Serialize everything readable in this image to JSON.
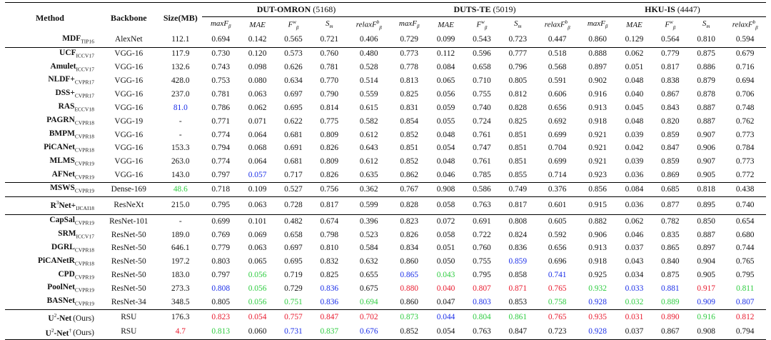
{
  "header": {
    "method": "Method",
    "backbone": "Backbone",
    "size": "Size(MB)",
    "datasets": [
      {
        "name": "DUT-OMRON",
        "count": "(5168)"
      },
      {
        "name": "DUTS-TE",
        "count": "(5019)"
      },
      {
        "name": "HKU-IS",
        "count": "(4447)"
      }
    ],
    "metrics": [
      "maxF",
      "MAE",
      "F",
      "S",
      "relaxF"
    ],
    "metric_subs": [
      "β",
      "",
      "β",
      "m",
      "β"
    ],
    "metric_sups": [
      "",
      "",
      "w",
      "",
      "b"
    ]
  },
  "colors": {
    "red": "#e8192c",
    "green": "#2ecc40",
    "blue": "#1a2ee8"
  },
  "rows": [
    {
      "m": "MDF",
      "v": "TIP16",
      "bb": "AlexNet",
      "size": "112.1",
      "vals": [
        "0.694",
        "0.142",
        "0.565",
        "0.721",
        "0.406",
        "0.729",
        "0.099",
        "0.543",
        "0.723",
        "0.447",
        "0.860",
        "0.129",
        "0.564",
        "0.810",
        "0.594"
      ]
    },
    {
      "sep": true,
      "m": "UCF",
      "v": "ICCV17",
      "bb": "VGG-16",
      "size": "117.9",
      "vals": [
        "0.730",
        "0.120",
        "0.573",
        "0.760",
        "0.480",
        "0.773",
        "0.112",
        "0.596",
        "0.777",
        "0.518",
        "0.888",
        "0.062",
        "0.779",
        "0.875",
        "0.679"
      ]
    },
    {
      "m": "Amulet",
      "v": "ICCV17",
      "bb": "VGG-16",
      "size": "132.6",
      "vals": [
        "0.743",
        "0.098",
        "0.626",
        "0.781",
        "0.528",
        "0.778",
        "0.084",
        "0.658",
        "0.796",
        "0.568",
        "0.897",
        "0.051",
        "0.817",
        "0.886",
        "0.716"
      ]
    },
    {
      "m": "NLDF+",
      "v": "CVPR17",
      "bb": "VGG-16",
      "size": "428.0",
      "vals": [
        "0.753",
        "0.080",
        "0.634",
        "0.770",
        "0.514",
        "0.813",
        "0.065",
        "0.710",
        "0.805",
        "0.591",
        "0.902",
        "0.048",
        "0.838",
        "0.879",
        "0.694"
      ]
    },
    {
      "m": "DSS+",
      "v": "CVPR17",
      "bb": "VGG-16",
      "size": "237.0",
      "vals": [
        "0.781",
        "0.063",
        "0.697",
        "0.790",
        "0.559",
        "0.825",
        "0.056",
        "0.755",
        "0.812",
        "0.606",
        "0.916",
        "0.040",
        "0.867",
        "0.878",
        "0.706"
      ]
    },
    {
      "m": "RAS",
      "v": "ECCV18",
      "bb": "VGG-16",
      "size": "81.0",
      "sizeC": "b",
      "vals": [
        "0.786",
        "0.062",
        "0.695",
        "0.814",
        "0.615",
        "0.831",
        "0.059",
        "0.740",
        "0.828",
        "0.656",
        "0.913",
        "0.045",
        "0.843",
        "0.887",
        "0.748"
      ]
    },
    {
      "m": "PAGRN",
      "v": "CVPR18",
      "bb": "VGG-19",
      "size": "-",
      "vals": [
        "0.771",
        "0.071",
        "0.622",
        "0.775",
        "0.582",
        "0.854",
        "0.055",
        "0.724",
        "0.825",
        "0.692",
        "0.918",
        "0.048",
        "0.820",
        "0.887",
        "0.762"
      ]
    },
    {
      "m": "BMPM",
      "v": "CVPR18",
      "bb": "VGG-16",
      "size": "-",
      "vals": [
        "0.774",
        "0.064",
        "0.681",
        "0.809",
        "0.612",
        "0.852",
        "0.048",
        "0.761",
        "0.851",
        "0.699",
        "0.921",
        "0.039",
        "0.859",
        "0.907",
        "0.773"
      ]
    },
    {
      "m": "PiCANet",
      "v": "CVPR18",
      "bb": "VGG-16",
      "size": "153.3",
      "vals": [
        "0.794",
        "0.068",
        "0.691",
        "0.826",
        "0.643",
        "0.851",
        "0.054",
        "0.747",
        "0.851",
        "0.704",
        "0.921",
        "0.042",
        "0.847",
        "0.906",
        "0.784"
      ]
    },
    {
      "m": "MLMS",
      "v": "CVPR19",
      "bb": "VGG-16",
      "size": "263.0",
      "vals": [
        "0.774",
        "0.064",
        "0.681",
        "0.809",
        "0.612",
        "0.852",
        "0.048",
        "0.761",
        "0.851",
        "0.699",
        "0.921",
        "0.039",
        "0.859",
        "0.907",
        "0.773"
      ]
    },
    {
      "m": "AFNet",
      "v": "CVPR19",
      "bb": "VGG-16",
      "size": "143.0",
      "vals": [
        "0.797",
        "0.057",
        "0.717",
        "0.826",
        "0.635",
        "0.862",
        "0.046",
        "0.785",
        "0.855",
        "0.714",
        "0.923",
        "0.036",
        "0.869",
        "0.905",
        "0.772"
      ],
      "cols": {
        "1": "b"
      }
    },
    {
      "sep": true,
      "m": "MSWS",
      "v": "CVPR19",
      "bb": "Dense-169",
      "size": "48.6",
      "sizeC": "g",
      "vals": [
        "0.718",
        "0.109",
        "0.527",
        "0.756",
        "0.362",
        "0.767",
        "0.908",
        "0.586",
        "0.749",
        "0.376",
        "0.856",
        "0.084",
        "0.685",
        "0.818",
        "0.438"
      ]
    },
    {
      "sep": true,
      "m": "R",
      "sup": "3",
      "m2": "Net+",
      "v": "IJCAI18",
      "bb": "ResNeXt",
      "size": "215.0",
      "vals": [
        "0.795",
        "0.063",
        "0.728",
        "0.817",
        "0.599",
        "0.828",
        "0.058",
        "0.763",
        "0.817",
        "0.601",
        "0.915",
        "0.036",
        "0.877",
        "0.895",
        "0.740"
      ]
    },
    {
      "sep": true,
      "m": "CapSal",
      "v": "CVPR19",
      "bb": "ResNet-101",
      "size": "-",
      "vals": [
        "0.699",
        "0.101",
        "0.482",
        "0.674",
        "0.396",
        "0.823",
        "0.072",
        "0.691",
        "0.808",
        "0.605",
        "0.882",
        "0.062",
        "0.782",
        "0.850",
        "0.654"
      ]
    },
    {
      "m": "SRM",
      "v": "ICCV17",
      "bb": "ResNet-50",
      "size": "189.0",
      "vals": [
        "0.769",
        "0.069",
        "0.658",
        "0.798",
        "0.523",
        "0.826",
        "0.058",
        "0.722",
        "0.824",
        "0.592",
        "0.906",
        "0.046",
        "0.835",
        "0.887",
        "0.680"
      ]
    },
    {
      "m": "DGRL",
      "v": "CVPR18",
      "bb": "ResNet-50",
      "size": "646.1",
      "vals": [
        "0.779",
        "0.063",
        "0.697",
        "0.810",
        "0.584",
        "0.834",
        "0.051",
        "0.760",
        "0.836",
        "0.656",
        "0.913",
        "0.037",
        "0.865",
        "0.897",
        "0.744"
      ]
    },
    {
      "m": "PiCANetR",
      "v": "CVPR18",
      "bb": "ResNet-50",
      "size": "197.2",
      "vals": [
        "0.803",
        "0.065",
        "0.695",
        "0.832",
        "0.632",
        "0.860",
        "0.050",
        "0.755",
        "0.859",
        "0.696",
        "0.918",
        "0.043",
        "0.840",
        "0.904",
        "0.765"
      ],
      "cols": {
        "8": "b"
      }
    },
    {
      "m": "CPD",
      "v": "CVPR19",
      "bb": "ResNet-50",
      "size": "183.0",
      "vals": [
        "0.797",
        "0.056",
        "0.719",
        "0.825",
        "0.655",
        "0.865",
        "0.043",
        "0.795",
        "0.858",
        "0.741",
        "0.925",
        "0.034",
        "0.875",
        "0.905",
        "0.795"
      ],
      "cols": {
        "1": "g",
        "5": "b",
        "6": "g",
        "9": "b"
      }
    },
    {
      "m": "PoolNet",
      "v": "CVPR19",
      "bb": "ResNet-50",
      "size": "273.3",
      "vals": [
        "0.808",
        "0.056",
        "0.729",
        "0.836",
        "0.675",
        "0.880",
        "0.040",
        "0.807",
        "0.871",
        "0.765",
        "0.932",
        "0.033",
        "0.881",
        "0.917",
        "0.811"
      ],
      "cols": {
        "0": "b",
        "1": "g",
        "3": "b",
        "5": "r",
        "6": "r",
        "7": "r",
        "8": "r",
        "9": "r",
        "10": "g",
        "11": "b",
        "12": "b",
        "13": "r",
        "14": "g"
      }
    },
    {
      "m": "BASNet",
      "v": "CVPR19",
      "bb": "ResNet-34",
      "size": "348.5",
      "vals": [
        "0.805",
        "0.056",
        "0.751",
        "0.836",
        "0.694",
        "0.860",
        "0.047",
        "0.803",
        "0.853",
        "0.758",
        "0.928",
        "0.032",
        "0.889",
        "0.909",
        "0.807"
      ],
      "cols": {
        "1": "g",
        "2": "g",
        "3": "b",
        "4": "g",
        "7": "b",
        "9": "g",
        "10": "b",
        "11": "g",
        "12": "g",
        "13": "b",
        "14": "b"
      }
    },
    {
      "sep": true,
      "m": "U",
      "sup": "2",
      "m2": "-Net",
      "ours": "(Ours)",
      "bb": "RSU",
      "size": "176.3",
      "vals": [
        "0.823",
        "0.054",
        "0.757",
        "0.847",
        "0.702",
        "0.873",
        "0.044",
        "0.804",
        "0.861",
        "0.765",
        "0.935",
        "0.031",
        "0.890",
        "0.916",
        "0.812"
      ],
      "cols": {
        "0": "r",
        "1": "r",
        "2": "r",
        "3": "r",
        "4": "r",
        "5": "g",
        "6": "b",
        "7": "g",
        "8": "g",
        "9": "r",
        "10": "r",
        "11": "r",
        "12": "r",
        "13": "g",
        "14": "r"
      }
    },
    {
      "m": "U",
      "sup": "2",
      "m2": "-Net",
      "dag": "†",
      "ours": "(Ours)",
      "bb": "RSU",
      "size": "4.7",
      "sizeC": "r",
      "vals": [
        "0.813",
        "0.060",
        "0.731",
        "0.837",
        "0.676",
        "0.852",
        "0.054",
        "0.763",
        "0.847",
        "0.723",
        "0.928",
        "0.037",
        "0.867",
        "0.908",
        "0.794"
      ],
      "cols": {
        "0": "g",
        "2": "b",
        "3": "g",
        "4": "b",
        "10": "b"
      }
    }
  ]
}
